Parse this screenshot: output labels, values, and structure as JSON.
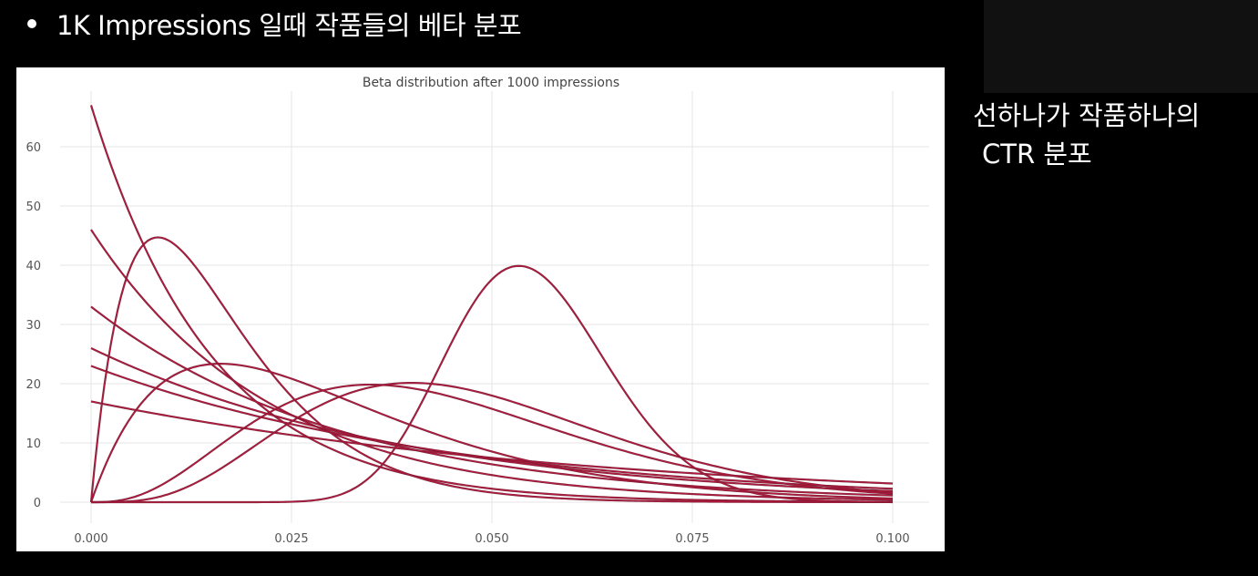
{
  "slide": {
    "heading": "1K Impressions 일때 작품들의 베타 분포",
    "side_note_line1": "선하나가 작품하나의",
    "side_note_line2": "CTR 분포"
  },
  "colors": {
    "background": "#000000",
    "plot_bg": "#ffffff",
    "grid": "#e4e4e4",
    "line": "#b2183a",
    "line_dark": "#6e1a33"
  },
  "chart_data": {
    "type": "line",
    "title": "Beta distribution after 1000 impressions",
    "xlabel": "",
    "ylabel": "",
    "xlim": [
      0,
      0.1
    ],
    "ylim": [
      -2,
      68
    ],
    "grid": true,
    "legend": "none",
    "x_ticks": [
      0,
      0.025,
      0.05,
      0.075,
      0.1
    ],
    "x_tick_labels": [
      "0.000",
      "0.025",
      "0.050",
      "0.075",
      "0.100"
    ],
    "y_ticks": [
      0,
      10,
      20,
      30,
      40,
      50,
      60
    ],
    "y_tick_labels": [
      "0",
      "10",
      "20",
      "30",
      "40",
      "50",
      "60"
    ],
    "series": [
      {
        "alpha": 1,
        "beta": 67,
        "peak_x": 0.0,
        "peak_y": 66
      },
      {
        "alpha": 1,
        "beta": 46,
        "peak_x": 0.0,
        "peak_y": 45
      },
      {
        "alpha": 1,
        "beta": 33,
        "peak_x": 0.0,
        "peak_y": 32
      },
      {
        "alpha": 1,
        "beta": 26,
        "peak_x": 0.0,
        "peak_y": 25
      },
      {
        "alpha": 1,
        "beta": 23,
        "peak_x": 0.0,
        "peak_y": 22
      },
      {
        "alpha": 1,
        "beta": 17,
        "peak_x": 0.0,
        "peak_y": 16
      },
      {
        "alpha": 2,
        "beta": 120,
        "peak_x": 0.0083,
        "peak_y": 43.7
      },
      {
        "alpha": 2,
        "beta": 62,
        "peak_x": 0.0164,
        "peak_y": 26
      },
      {
        "alpha": 4,
        "beta": 84,
        "peak_x": 0.0349,
        "peak_y": 22.7
      },
      {
        "alpha": 5,
        "beta": 97,
        "peak_x": 0.04,
        "peak_y": 17.8
      },
      {
        "alpha": 28,
        "beta": 480,
        "peak_x": 0.0533,
        "peak_y": 41.3
      }
    ]
  }
}
